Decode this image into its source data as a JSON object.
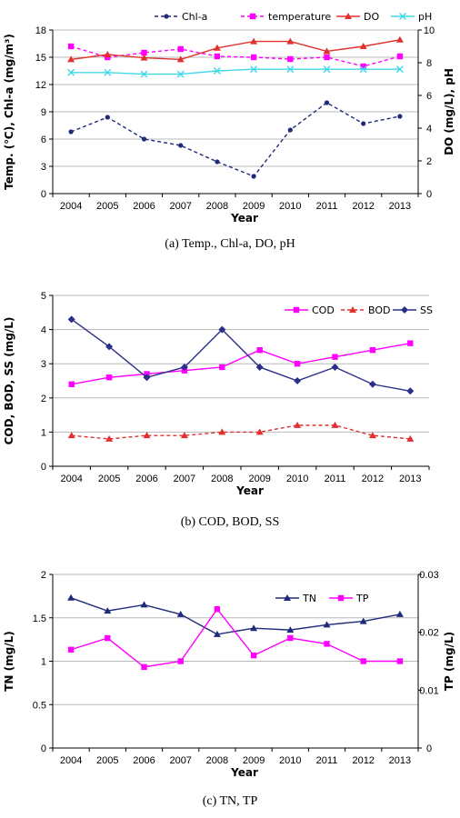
{
  "chart_data": [
    {
      "type": "line",
      "caption": "(a)  Temp., Chl-a, DO, pH",
      "xlabel": "Year",
      "ylabel": "Temp. (℃),  Chl-a (mg/m³)",
      "y2label": "DO (mg/L),  pH",
      "x": [
        "2004",
        "2005",
        "2006",
        "2007",
        "2008",
        "2009",
        "2010",
        "2011",
        "2012",
        "2013"
      ],
      "ylim": [
        0,
        18
      ],
      "yticks": [
        "0",
        "3",
        "6",
        "9",
        "12",
        "15",
        "18"
      ],
      "y2lim": [
        0,
        10
      ],
      "y2ticks": [
        "0",
        "2",
        "4",
        "6",
        "8",
        "10"
      ],
      "grid": true,
      "legend_position": "top",
      "series": [
        {
          "name": "Chl-a",
          "axis": "left",
          "color": "#1f2a7a",
          "marker": "circle",
          "dash": "dashed",
          "values": [
            6.8,
            8.4,
            6.0,
            5.3,
            3.5,
            1.9,
            7.0,
            10.0,
            7.7,
            8.5
          ]
        },
        {
          "name": "temperature",
          "axis": "left",
          "color": "#ff00ff",
          "marker": "square",
          "dash": "dashed",
          "values": [
            16.2,
            15.0,
            15.5,
            15.9,
            15.1,
            15.0,
            14.8,
            15.0,
            14.0,
            15.1
          ]
        },
        {
          "name": "DO",
          "axis": "right",
          "color": "#e03030",
          "marker": "triangle",
          "dash": "solid",
          "values": [
            8.2,
            8.5,
            8.3,
            8.2,
            8.9,
            9.3,
            9.3,
            8.7,
            9.0,
            9.4
          ]
        },
        {
          "name": "pH",
          "axis": "right",
          "color": "#40d8e8",
          "marker": "x",
          "dash": "solid",
          "values": [
            7.4,
            7.4,
            7.3,
            7.3,
            7.5,
            7.6,
            7.6,
            7.6,
            7.6,
            7.6
          ]
        }
      ]
    },
    {
      "type": "line",
      "caption": "(b)  COD,  BOD,  SS",
      "xlabel": "Year",
      "ylabel": "COD, BOD, SS (mg/L)",
      "x": [
        "2004",
        "2005",
        "2006",
        "2007",
        "2008",
        "2009",
        "2010",
        "2011",
        "2012",
        "2013"
      ],
      "ylim": [
        0,
        5
      ],
      "yticks": [
        "0",
        "1",
        "2",
        "3",
        "4",
        "5"
      ],
      "grid": true,
      "legend_position": "top-right",
      "series": [
        {
          "name": "COD",
          "axis": "left",
          "color": "#ff00ff",
          "marker": "square",
          "dash": "solid",
          "values": [
            2.4,
            2.6,
            2.7,
            2.8,
            2.9,
            3.4,
            3.0,
            3.2,
            3.4,
            3.6
          ]
        },
        {
          "name": "BOD",
          "axis": "left",
          "color": "#e03030",
          "marker": "triangle",
          "dash": "dashed",
          "values": [
            0.9,
            0.8,
            0.9,
            0.9,
            1.0,
            1.0,
            1.2,
            1.2,
            0.9,
            0.8
          ]
        },
        {
          "name": "SS",
          "axis": "left",
          "color": "#2a2f8a",
          "marker": "diamond",
          "dash": "solid",
          "values": [
            4.3,
            3.5,
            2.6,
            2.9,
            4.0,
            2.9,
            2.5,
            2.9,
            2.4,
            2.2
          ]
        }
      ]
    },
    {
      "type": "line",
      "caption": "(c)  TN,  TP",
      "xlabel": "Year",
      "ylabel": "TN (mg/L)",
      "y2label": "TP (mg/L)",
      "x": [
        "2004",
        "2005",
        "2006",
        "2007",
        "2008",
        "2009",
        "2010",
        "2011",
        "2012",
        "2013"
      ],
      "ylim": [
        0,
        2
      ],
      "yticks": [
        "0",
        "0.5",
        "1",
        "1.5",
        "2"
      ],
      "y2lim": [
        0,
        0.03
      ],
      "y2ticks": [
        "0",
        "0.01",
        "0.02",
        "0.03"
      ],
      "grid": true,
      "legend_position": "top-right",
      "series": [
        {
          "name": "TN",
          "axis": "left",
          "color": "#1f2a7a",
          "marker": "triangle",
          "dash": "solid",
          "values": [
            1.73,
            1.58,
            1.65,
            1.54,
            1.31,
            1.38,
            1.36,
            1.42,
            1.46,
            1.54
          ]
        },
        {
          "name": "TP",
          "axis": "right",
          "color": "#ff00ff",
          "marker": "square",
          "dash": "solid",
          "values": [
            0.017,
            0.019,
            0.014,
            0.015,
            0.024,
            0.016,
            0.019,
            0.018,
            0.015,
            0.015
          ]
        }
      ]
    }
  ]
}
